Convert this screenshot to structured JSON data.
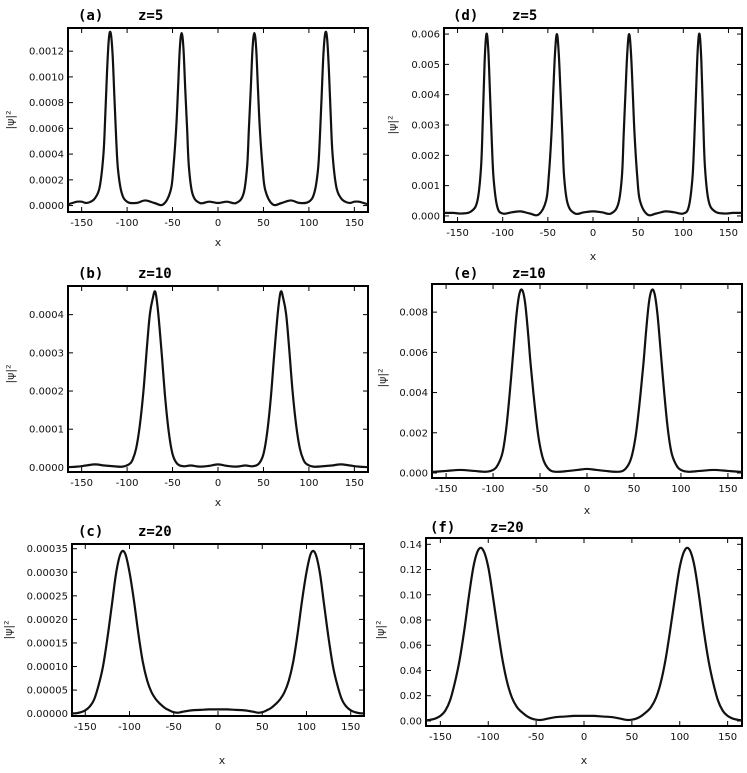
{
  "chart_data": [
    {
      "id": "a",
      "panel_label": "(a)",
      "title": "z=5",
      "type": "line",
      "xlabel": "x",
      "ylabel": "|ψ|²",
      "xlim": [
        -165,
        165
      ],
      "ylim": [
        -5e-05,
        0.00138
      ],
      "xticks": [
        -150,
        -100,
        -50,
        0,
        50,
        100,
        150
      ],
      "xtick_labels": [
        "-150",
        "-100",
        "-50",
        "0",
        "50",
        "100",
        "150"
      ],
      "yticks": [
        0,
        0.0002,
        0.0004,
        0.0006,
        0.0008,
        0.001,
        0.0012
      ],
      "ytick_labels": [
        "0.0000",
        "0.0002",
        "0.0004",
        "0.0006",
        "0.0008",
        "0.0010",
        "0.0012"
      ],
      "series": [
        {
          "name": "intensity",
          "x": [
            -165,
            -160,
            -155,
            -150,
            -145,
            -140,
            -135,
            -130,
            -126,
            -124,
            -122,
            -120,
            -118,
            -116,
            -114,
            -112,
            -110,
            -106,
            -100,
            -90,
            -80,
            -70,
            -60,
            -52,
            -49,
            -46,
            -44,
            -42,
            -40,
            -38,
            -36,
            -34,
            -32,
            -28,
            -20,
            -10,
            0,
            10,
            20,
            28,
            32,
            34,
            36,
            38,
            40,
            42,
            44,
            46,
            49,
            52,
            60,
            70,
            80,
            90,
            100,
            106,
            110,
            112,
            114,
            116,
            118,
            120,
            122,
            124,
            126,
            130,
            135,
            140,
            145,
            150,
            155,
            160,
            165
          ],
          "y": [
            1e-05,
            2e-05,
            3e-05,
            3e-05,
            2e-05,
            3e-05,
            6e-05,
            0.00015,
            0.0004,
            0.0007,
            0.00105,
            0.0013,
            0.00134,
            0.00118,
            0.00085,
            0.00052,
            0.00028,
            0.0001,
            3e-05,
            2e-05,
            4e-05,
            2e-05,
            1e-05,
            0.00012,
            0.0003,
            0.0006,
            0.0009,
            0.00122,
            0.00134,
            0.00122,
            0.0009,
            0.0006,
            0.0003,
            9e-05,
            2e-05,
            3e-05,
            2e-05,
            3e-05,
            2e-05,
            9e-05,
            0.0003,
            0.0006,
            0.0009,
            0.00122,
            0.00134,
            0.00122,
            0.0009,
            0.0006,
            0.0003,
            0.00012,
            1e-05,
            2e-05,
            4e-05,
            2e-05,
            3e-05,
            0.0001,
            0.00028,
            0.00052,
            0.00085,
            0.00118,
            0.00134,
            0.0013,
            0.00105,
            0.0007,
            0.0004,
            0.00015,
            6e-05,
            3e-05,
            2e-05,
            3e-05,
            3e-05,
            2e-05,
            1e-05
          ]
        }
      ]
    },
    {
      "id": "d",
      "panel_label": "(d)",
      "title": "z=5",
      "type": "line",
      "xlabel": "x",
      "ylabel": "|ψ|²",
      "xlim": [
        -165,
        165
      ],
      "ylim": [
        -0.0002,
        0.0062
      ],
      "xticks": [
        -150,
        -100,
        -50,
        0,
        50,
        100,
        150
      ],
      "xtick_labels": [
        "-150",
        "-100",
        "-50",
        "0",
        "50",
        "100",
        "150"
      ],
      "yticks": [
        0,
        0.001,
        0.002,
        0.003,
        0.004,
        0.005,
        0.006
      ],
      "ytick_labels": [
        "0.000",
        "0.001",
        "0.002",
        "0.003",
        "0.004",
        "0.005",
        "0.006"
      ],
      "series": [
        {
          "name": "intensity",
          "x": [
            -165,
            -155,
            -145,
            -135,
            -128,
            -124,
            -122,
            -120,
            -118,
            -116,
            -114,
            -112,
            -110,
            -106,
            -100,
            -90,
            -80,
            -70,
            -60,
            -52,
            -49,
            -46,
            -44,
            -42,
            -40,
            -38,
            -36,
            -34,
            -32,
            -28,
            -20,
            -10,
            0,
            10,
            20,
            28,
            32,
            34,
            36,
            38,
            40,
            42,
            44,
            46,
            49,
            52,
            60,
            70,
            80,
            90,
            100,
            106,
            110,
            112,
            114,
            116,
            118,
            120,
            122,
            124,
            128,
            135,
            145,
            155,
            165
          ],
          "y": [
            0.0001,
            0.0001,
            8e-05,
            0.00015,
            0.0005,
            0.0016,
            0.0032,
            0.0051,
            0.006,
            0.0055,
            0.004,
            0.0024,
            0.0012,
            0.0003,
            8e-05,
            0.00012,
            0.00015,
            8e-05,
            5e-05,
            0.0005,
            0.0013,
            0.0027,
            0.0041,
            0.0054,
            0.006,
            0.0054,
            0.0041,
            0.0027,
            0.0013,
            0.0004,
            8e-05,
            0.00012,
            0.00015,
            0.00012,
            8e-05,
            0.0004,
            0.0013,
            0.0027,
            0.0041,
            0.0054,
            0.006,
            0.0054,
            0.0041,
            0.0027,
            0.0013,
            0.0005,
            5e-05,
            8e-05,
            0.00015,
            0.00012,
            8e-05,
            0.0003,
            0.0012,
            0.0024,
            0.004,
            0.0055,
            0.006,
            0.0051,
            0.0032,
            0.0016,
            0.0005,
            0.00015,
            8e-05,
            0.0001,
            0.0001
          ]
        }
      ]
    },
    {
      "id": "b",
      "panel_label": "(b)",
      "title": "z=10",
      "type": "line",
      "xlabel": "x",
      "ylabel": "|ψ|²",
      "xlim": [
        -165,
        165
      ],
      "ylim": [
        -1.2e-05,
        0.000475
      ],
      "xticks": [
        -150,
        -100,
        -50,
        0,
        50,
        100,
        150
      ],
      "xtick_labels": [
        "-150",
        "-100",
        "-50",
        "0",
        "50",
        "100",
        "150"
      ],
      "yticks": [
        0,
        0.0001,
        0.0002,
        0.0003,
        0.0004
      ],
      "ytick_labels": [
        "0.0000",
        "0.0001",
        "0.0002",
        "0.0003",
        "0.0004"
      ],
      "series": [
        {
          "name": "intensity",
          "x": [
            -165,
            -155,
            -145,
            -135,
            -125,
            -115,
            -105,
            -98,
            -94,
            -90,
            -86,
            -82,
            -78,
            -75,
            -72,
            -69,
            -66,
            -62,
            -58,
            -54,
            -50,
            -45,
            -38,
            -30,
            -20,
            -10,
            0,
            10,
            20,
            30,
            38,
            45,
            50,
            54,
            58,
            62,
            66,
            69,
            72,
            75,
            78,
            82,
            86,
            90,
            94,
            98,
            105,
            115,
            125,
            135,
            145,
            155,
            165
          ],
          "y": [
            8e-07,
            2e-06,
            5e-06,
            8e-06,
            5e-06,
            3e-06,
            2e-06,
            8e-06,
            2e-05,
            5e-05,
            0.00011,
            0.0002,
            0.00032,
            0.0004,
            0.00044,
            0.00046,
            0.00041,
            0.0003,
            0.00018,
            9e-05,
            3.5e-05,
            1e-05,
            3e-06,
            5e-06,
            2e-06,
            4e-06,
            8e-06,
            4e-06,
            2e-06,
            5e-06,
            3e-06,
            1e-05,
            3.5e-05,
            9e-05,
            0.00018,
            0.0003,
            0.00041,
            0.00046,
            0.00044,
            0.0004,
            0.00032,
            0.0002,
            0.00011,
            5e-05,
            2e-05,
            8e-06,
            2e-06,
            3e-06,
            5e-06,
            8e-06,
            5e-06,
            2e-06,
            8e-07
          ]
        }
      ]
    },
    {
      "id": "e",
      "panel_label": "(e)",
      "title": "z=10",
      "type": "line",
      "xlabel": "x",
      "ylabel": "|ψ|²",
      "xlim": [
        -165,
        165
      ],
      "ylim": [
        -0.00025,
        0.0094
      ],
      "xticks": [
        -150,
        -100,
        -50,
        0,
        50,
        100,
        150
      ],
      "xtick_labels": [
        "-150",
        "-100",
        "-50",
        "0",
        "50",
        "100",
        "150"
      ],
      "yticks": [
        0,
        0.002,
        0.004,
        0.006,
        0.008
      ],
      "ytick_labels": [
        "0.000",
        "0.002",
        "0.004",
        "0.006",
        "0.008"
      ],
      "series": [
        {
          "name": "intensity",
          "x": [
            -165,
            -150,
            -135,
            -120,
            -108,
            -100,
            -95,
            -90,
            -86,
            -82,
            -78,
            -75,
            -72,
            -69,
            -66,
            -63,
            -60,
            -56,
            -52,
            -48,
            -44,
            -38,
            -30,
            -20,
            -10,
            0,
            10,
            20,
            30,
            38,
            44,
            48,
            52,
            56,
            60,
            63,
            66,
            69,
            72,
            75,
            78,
            82,
            86,
            90,
            95,
            100,
            108,
            120,
            135,
            150,
            165
          ],
          "y": [
            5e-05,
            0.0001,
            0.00015,
            0.0001,
            6e-05,
            0.00015,
            0.0004,
            0.001,
            0.0022,
            0.0041,
            0.0063,
            0.0079,
            0.0089,
            0.0091,
            0.0085,
            0.0071,
            0.0054,
            0.0035,
            0.0019,
            0.0009,
            0.0004,
            0.0001,
            6e-05,
            0.0001,
            0.00015,
            0.0002,
            0.00015,
            0.0001,
            6e-05,
            0.0001,
            0.0004,
            0.0009,
            0.0019,
            0.0035,
            0.0054,
            0.0071,
            0.0085,
            0.0091,
            0.0089,
            0.0079,
            0.0063,
            0.0041,
            0.0022,
            0.001,
            0.0004,
            0.00015,
            6e-05,
            0.0001,
            0.00015,
            0.0001,
            5e-05
          ]
        }
      ]
    },
    {
      "id": "c",
      "panel_label": "(c)",
      "title": "z=20",
      "type": "line",
      "xlabel": "x",
      "ylabel": "|ψ|²",
      "xlim": [
        -165,
        165
      ],
      "ylim": [
        -5e-06,
        0.00036
      ],
      "xticks": [
        -150,
        -100,
        -50,
        0,
        50,
        100,
        150
      ],
      "xtick_labels": [
        "-150",
        "-100",
        "-50",
        "0",
        "50",
        "100",
        "150"
      ],
      "yticks": [
        0,
        5e-05,
        0.0001,
        0.00015,
        0.0002,
        0.00025,
        0.0003,
        0.00035
      ],
      "ytick_labels": [
        "0.00000",
        "0.00005",
        "0.00010",
        "0.00015",
        "0.00020",
        "0.00025",
        "0.00030",
        "0.00035"
      ],
      "series": [
        {
          "name": "intensity",
          "x": [
            -165,
            -160,
            -155,
            -150,
            -145,
            -140,
            -135,
            -130,
            -125,
            -120,
            -115,
            -110,
            -105,
            -100,
            -95,
            -90,
            -85,
            -80,
            -75,
            -70,
            -65,
            -60,
            -55,
            -50,
            -45,
            -40,
            -30,
            -20,
            -10,
            0,
            10,
            20,
            30,
            40,
            45,
            50,
            55,
            60,
            65,
            70,
            75,
            80,
            85,
            90,
            95,
            100,
            105,
            110,
            115,
            120,
            125,
            130,
            135,
            140,
            145,
            150,
            155,
            160,
            165
          ],
          "y": [
            5e-07,
            1e-06,
            3e-06,
            7e-06,
            1.5e-05,
            3e-05,
            6e-05,
            0.0001,
            0.00016,
            0.00023,
            0.0003,
            0.00034,
            0.00034,
            0.0003,
            0.00024,
            0.00017,
            0.00011,
            7e-05,
            4.5e-05,
            3e-05,
            2e-05,
            1.2e-05,
            7e-06,
            3e-06,
            2e-06,
            4e-06,
            7e-06,
            8e-06,
            9e-06,
            9e-06,
            9e-06,
            8e-06,
            7e-06,
            4e-06,
            2e-06,
            3e-06,
            7e-06,
            1.2e-05,
            2e-05,
            3e-05,
            4.5e-05,
            7e-05,
            0.00011,
            0.00017,
            0.00024,
            0.0003,
            0.00034,
            0.00034,
            0.0003,
            0.00023,
            0.00016,
            0.0001,
            6e-05,
            3e-05,
            1.5e-05,
            7e-06,
            3e-06,
            1e-06,
            5e-07
          ]
        }
      ]
    },
    {
      "id": "f",
      "panel_label": "(f)",
      "title": "z=20",
      "type": "line",
      "xlabel": "x",
      "ylabel": "|ψ|²",
      "xlim": [
        -165,
        165
      ],
      "ylim": [
        -0.004,
        0.145
      ],
      "xticks": [
        -150,
        -100,
        -50,
        0,
        50,
        100,
        150
      ],
      "xtick_labels": [
        "-150",
        "-100",
        "-50",
        "0",
        "50",
        "100",
        "150"
      ],
      "yticks": [
        0,
        0.02,
        0.04,
        0.06,
        0.08,
        0.1,
        0.12,
        0.14
      ],
      "ytick_labels": [
        "0.00",
        "0.02",
        "0.04",
        "0.06",
        "0.08",
        "0.10",
        "0.12",
        "0.14"
      ],
      "series": [
        {
          "name": "intensity",
          "x": [
            -165,
            -160,
            -155,
            -150,
            -145,
            -140,
            -135,
            -130,
            -125,
            -120,
            -115,
            -110,
            -105,
            -100,
            -95,
            -90,
            -85,
            -80,
            -75,
            -70,
            -65,
            -60,
            -55,
            -50,
            -45,
            -40,
            -30,
            -20,
            -10,
            0,
            10,
            20,
            30,
            40,
            45,
            50,
            55,
            60,
            65,
            70,
            75,
            80,
            85,
            90,
            95,
            100,
            105,
            110,
            115,
            120,
            125,
            130,
            135,
            140,
            145,
            150,
            155,
            160,
            165
          ],
          "y": [
            0.0005,
            0.001,
            0.002,
            0.004,
            0.008,
            0.016,
            0.03,
            0.048,
            0.072,
            0.1,
            0.124,
            0.136,
            0.135,
            0.122,
            0.098,
            0.072,
            0.048,
            0.03,
            0.018,
            0.011,
            0.007,
            0.004,
            0.002,
            0.001,
            0.0008,
            0.0015,
            0.003,
            0.0035,
            0.004,
            0.004,
            0.004,
            0.0035,
            0.003,
            0.0015,
            0.0008,
            0.001,
            0.002,
            0.004,
            0.007,
            0.011,
            0.018,
            0.03,
            0.048,
            0.072,
            0.098,
            0.122,
            0.135,
            0.136,
            0.124,
            0.1,
            0.072,
            0.048,
            0.03,
            0.016,
            0.008,
            0.004,
            0.002,
            0.001,
            0.0005
          ]
        }
      ]
    }
  ]
}
